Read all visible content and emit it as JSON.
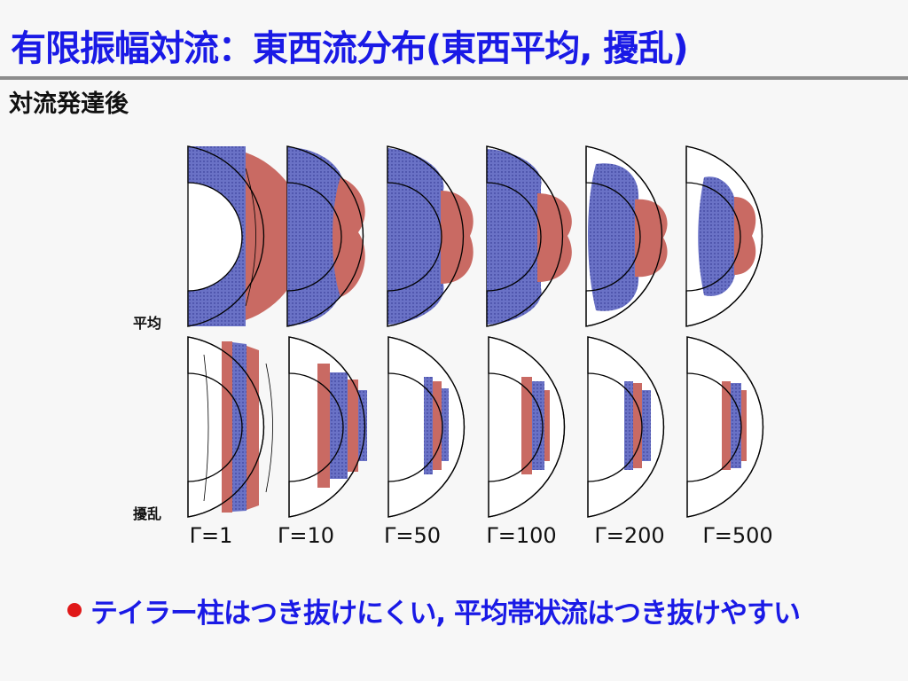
{
  "slide": {
    "title": "有限振幅対流：東西流分布(東西平均, 擾乱)",
    "subtitle": "対流発達後",
    "row_labels": [
      "平均",
      "擾乱"
    ],
    "gamma_labels": [
      "Γ=1",
      "Γ=10",
      "Γ=50",
      "Γ=100",
      "Γ=200",
      "Γ=500"
    ],
    "bullet_text": "テイラー柱はつき抜けにくい, 平均帯状流はつき抜けやすい"
  },
  "colors": {
    "title": "#1a1ae6",
    "positive": "#c96a63",
    "negative": "#6a72c6",
    "bullet": "#e01818"
  }
}
